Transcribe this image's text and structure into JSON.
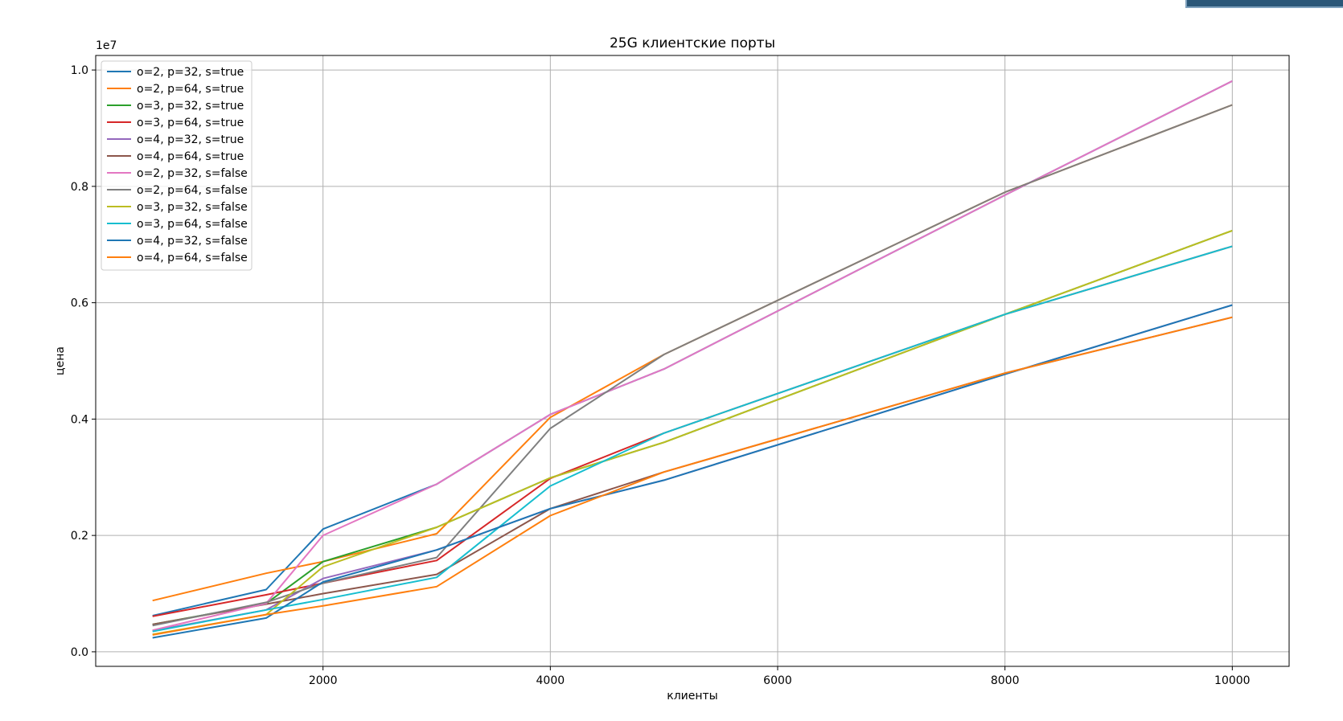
{
  "chart_data": {
    "type": "line",
    "title": "25G клиентские порты",
    "xlabel": "клиенты",
    "ylabel": "цена",
    "y_offset_label": "1e7",
    "xlim": [
      0,
      10500
    ],
    "ylim": [
      -0.025,
      1.025
    ],
    "xticks": [
      2000,
      4000,
      6000,
      8000,
      10000
    ],
    "xtick_labels": [
      "2000",
      "4000",
      "6000",
      "8000",
      "10000"
    ],
    "yticks": [
      0.0,
      0.2,
      0.4,
      0.6,
      0.8,
      1.0
    ],
    "ytick_labels": [
      "0.0",
      "0.2",
      "0.4",
      "0.6",
      "0.8",
      "1.0"
    ],
    "grid": true,
    "legend_position": "top-left",
    "x": [
      500,
      1500,
      2000,
      3000,
      4000,
      5000,
      8000,
      10000
    ],
    "series": [
      {
        "name": "o=2, p=32, s=true",
        "color": "#1f77b4",
        "values": [
          0.062,
          0.107,
          0.211,
          0.288,
          0.408,
          0.486,
          0.785,
          0.981
        ]
      },
      {
        "name": "o=2, p=64, s=true",
        "color": "#ff7f0e",
        "values": [
          0.088,
          0.135,
          0.155,
          0.203,
          0.403,
          0.511,
          0.79,
          0.94
        ]
      },
      {
        "name": "o=3, p=32, s=true",
        "color": "#2ca02c",
        "values": [
          0.047,
          0.083,
          0.155,
          0.214,
          0.299,
          0.36,
          0.58,
          0.724
        ]
      },
      {
        "name": "o=3, p=64, s=true",
        "color": "#d62728",
        "values": [
          0.061,
          0.098,
          0.118,
          0.157,
          0.298,
          0.376,
          0.58,
          0.697
        ]
      },
      {
        "name": "o=4, p=32, s=true",
        "color": "#9467bd",
        "values": [
          0.036,
          0.072,
          0.126,
          0.175,
          0.246,
          0.295,
          0.477,
          0.596
        ]
      },
      {
        "name": "o=4, p=64, s=true",
        "color": "#8c564b",
        "values": [
          0.047,
          0.082,
          0.1,
          0.133,
          0.246,
          0.309,
          0.479,
          0.575
        ]
      },
      {
        "name": "o=2, p=32, s=false",
        "color": "#e377c2",
        "values": [
          0.037,
          0.083,
          0.2,
          0.288,
          0.408,
          0.486,
          0.785,
          0.981
        ]
      },
      {
        "name": "o=2, p=64, s=false",
        "color": "#7f7f7f",
        "values": [
          0.045,
          0.085,
          0.118,
          0.162,
          0.384,
          0.511,
          0.79,
          0.94
        ]
      },
      {
        "name": "o=3, p=32, s=false",
        "color": "#bcbd22",
        "values": [
          0.03,
          0.064,
          0.146,
          0.214,
          0.299,
          0.36,
          0.58,
          0.724
        ]
      },
      {
        "name": "o=3, p=64, s=false",
        "color": "#17becf",
        "values": [
          0.035,
          0.072,
          0.09,
          0.128,
          0.285,
          0.376,
          0.58,
          0.697
        ]
      },
      {
        "name": "o=4, p=32, s=false",
        "color": "#1f77b4",
        "values": [
          0.024,
          0.058,
          0.12,
          0.175,
          0.246,
          0.295,
          0.477,
          0.596
        ]
      },
      {
        "name": "o=4, p=64, s=false",
        "color": "#ff7f0e",
        "values": [
          0.029,
          0.064,
          0.079,
          0.112,
          0.234,
          0.309,
          0.479,
          0.575
        ]
      }
    ]
  }
}
